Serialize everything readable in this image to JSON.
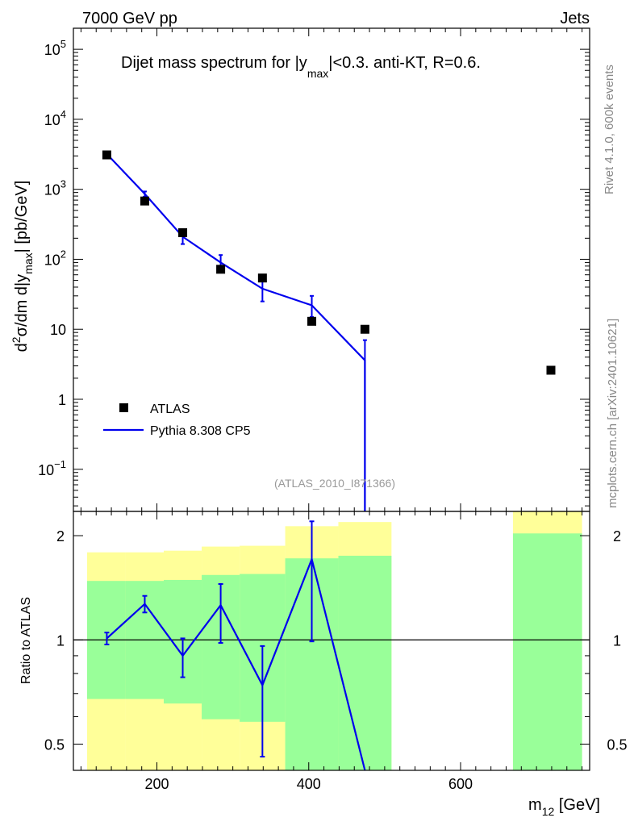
{
  "header": {
    "left": "7000 GeV pp",
    "right": "Jets"
  },
  "side_text": {
    "rivet": "Rivet 4.1.0,  600k events",
    "mcplots": "mcplots.cern.ch [arXiv:2401.10621]"
  },
  "plot_title": {
    "main": "Dijet mass spectrum for |y",
    "sub": "max",
    "rest": "|<0.3.  anti-KT, R=0.6."
  },
  "watermark": "(ATLAS_2010_I871366)",
  "y_axis_main": {
    "main": "d",
    "sup": "2",
    "rest1": "σ/dm d|y",
    "sub": "max",
    "rest2": "| [pb/GeV]"
  },
  "y_axis_ratio": "Ratio to ATLAS",
  "x_axis": {
    "main": "m",
    "sub": "12",
    "unit": " [GeV]"
  },
  "legend": {
    "data_label": "ATLAS",
    "mc_label": "Pythia 8.308 CP5"
  },
  "colors": {
    "data": "#000000",
    "mc": "#0000ee",
    "band_inner": "#99ff99",
    "band_outer": "#ffff99",
    "axis": "#000000",
    "side_text": "#888888"
  },
  "chart_data": {
    "type": "line",
    "x_range": [
      90,
      770
    ],
    "main_panel": {
      "yscale": "log",
      "ylim": [
        0.025,
        200000
      ],
      "y_tick_labels": [
        {
          "value": 100000,
          "base": "10",
          "exp": "5"
        },
        {
          "value": 10000,
          "base": "10",
          "exp": "4"
        },
        {
          "value": 1000,
          "base": "10",
          "exp": "3"
        },
        {
          "value": 100,
          "base": "10",
          "exp": "2"
        },
        {
          "value": 10,
          "base": "10",
          "exp": ""
        },
        {
          "value": 1,
          "base": "1",
          "exp": ""
        },
        {
          "value": 0.1,
          "base": "10",
          "exp": "−1"
        }
      ],
      "data": {
        "name": "ATLAS",
        "x": [
          134,
          184,
          234,
          284,
          339,
          404,
          474,
          719
        ],
        "y": [
          3100,
          680,
          240,
          72,
          54,
          13,
          10,
          2.6
        ]
      },
      "mc": {
        "name": "Pythia 8.308 CP5",
        "x": [
          134,
          184,
          234,
          284,
          339,
          404,
          474
        ],
        "y": [
          3200,
          860,
          210,
          90,
          38,
          22,
          3.6
        ],
        "yerr": [
          [
            3400,
            3000
          ],
          [
            930,
            780
          ],
          [
            265,
            165
          ],
          [
            115,
            70
          ],
          [
            52,
            25
          ],
          [
            30,
            15
          ],
          [
            7.0,
            0.01
          ]
        ],
        "drop_to_x": 474
      }
    },
    "ratio_panel": {
      "ylabel": "Ratio to ATLAS",
      "yscale": "log",
      "ylim": [
        0.42,
        2.35
      ],
      "ref_line": 1,
      "y_tick_labels": [
        "2",
        "1",
        "0.5"
      ],
      "y_tick_values": [
        2,
        1,
        0.5
      ],
      "bands": [
        {
          "x0": 108,
          "x1": 159,
          "inner": [
            0.675,
            1.48
          ],
          "outer": [
            0.4,
            1.79
          ]
        },
        {
          "x0": 159,
          "x1": 209,
          "inner": [
            0.675,
            1.48
          ],
          "outer": [
            0.4,
            1.79
          ]
        },
        {
          "x0": 209,
          "x1": 259,
          "inner": [
            0.655,
            1.49
          ],
          "outer": [
            0.4,
            1.81
          ]
        },
        {
          "x0": 259,
          "x1": 309,
          "inner": [
            0.59,
            1.54
          ],
          "outer": [
            0.4,
            1.86
          ]
        },
        {
          "x0": 309,
          "x1": 369,
          "inner": [
            0.58,
            1.55
          ],
          "outer": [
            0.4,
            1.87
          ]
        },
        {
          "x0": 369,
          "x1": 439,
          "inner": [
            0.4,
            1.72
          ],
          "outer": [
            0.4,
            2.13
          ]
        },
        {
          "x0": 439,
          "x1": 509,
          "inner": [
            0.4,
            1.75
          ],
          "outer": [
            0.4,
            2.19
          ]
        },
        {
          "x0": 669,
          "x1": 760,
          "inner": [
            0.4,
            2.03
          ],
          "outer": [
            0.4,
            2.35
          ]
        }
      ],
      "mc_ratio": {
        "x": [
          134,
          184,
          234,
          284,
          339,
          404,
          474
        ],
        "y": [
          1.01,
          1.27,
          0.9,
          1.26,
          0.74,
          1.71,
          0.36
        ],
        "yerr": [
          [
            1.05,
            0.97
          ],
          [
            1.34,
            1.2
          ],
          [
            1.01,
            0.78
          ],
          [
            1.45,
            0.98
          ],
          [
            0.96,
            0.46
          ],
          [
            2.2,
            0.99
          ],
          null
        ]
      }
    },
    "x_tick_labels": [
      "200",
      "400",
      "600"
    ],
    "x_tick_values": [
      200,
      400,
      600
    ]
  }
}
